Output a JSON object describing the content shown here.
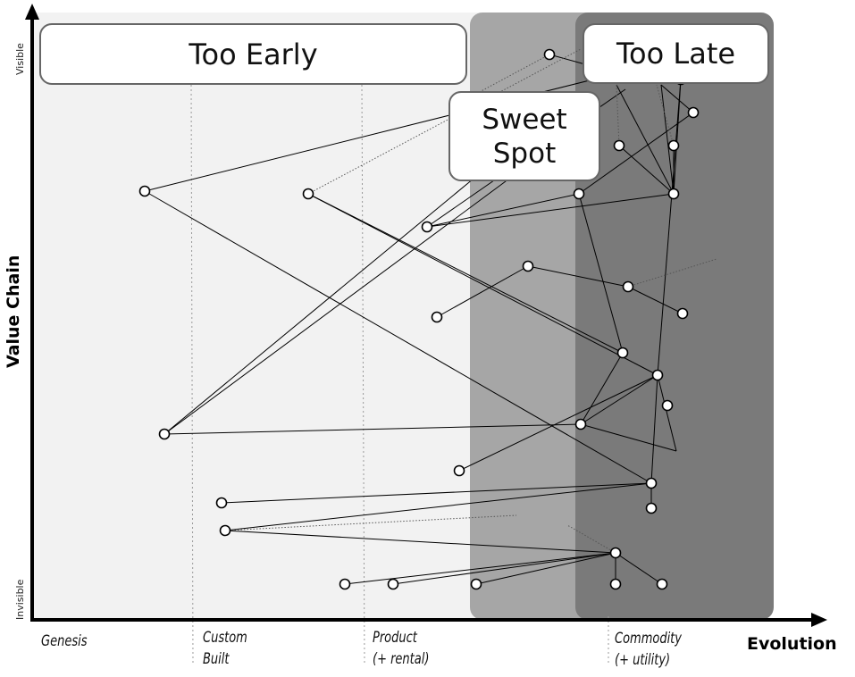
{
  "zones": {
    "too_early": "Too Early",
    "sweet_spot_line1": "Sweet",
    "sweet_spot_line2": "Spot",
    "too_late": "Too Late"
  },
  "axes": {
    "y_title": "Value Chain",
    "y_top": "Visible",
    "y_bottom": "Invisible",
    "x_title": "Evolution",
    "stages": [
      {
        "line1": "Genesis",
        "line2": ""
      },
      {
        "line1": "Custom",
        "line2": "Built"
      },
      {
        "line1": "Product",
        "line2": "(+ rental)"
      },
      {
        "line1": "Commodity",
        "line2": "(+ utility)"
      }
    ]
  },
  "colors": {
    "too_early_bg": "#f2f2f2",
    "sweet_spot_bg": "#a6a6a6",
    "too_late_bg": "#7a7a7a"
  }
}
